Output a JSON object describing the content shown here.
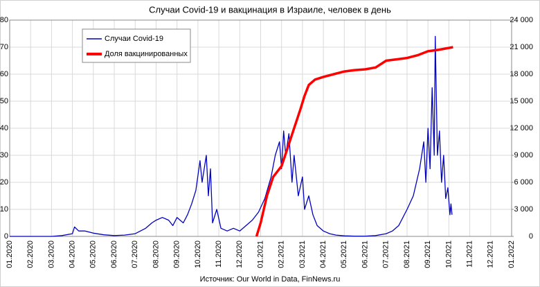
{
  "chart_data": {
    "type": "line",
    "title": "Случаи Covid-19 и вакцинация в Израиле, человек в день",
    "source": "Источник: Our World in Data, FinNews.ru",
    "xlim": [
      0,
      24
    ],
    "xticks": [
      {
        "value": 0,
        "label": "01.2020"
      },
      {
        "value": 1,
        "label": "02.2020"
      },
      {
        "value": 2,
        "label": "03.2020"
      },
      {
        "value": 3,
        "label": "04.2020"
      },
      {
        "value": 4,
        "label": "05.2020"
      },
      {
        "value": 5,
        "label": "06.2020"
      },
      {
        "value": 6,
        "label": "07.2020"
      },
      {
        "value": 7,
        "label": "08.2020"
      },
      {
        "value": 8,
        "label": "09.2020"
      },
      {
        "value": 9,
        "label": "10.2020"
      },
      {
        "value": 10,
        "label": "11.2020"
      },
      {
        "value": 11,
        "label": "12.2020"
      },
      {
        "value": 12,
        "label": "01.2021"
      },
      {
        "value": 13,
        "label": "02.2021"
      },
      {
        "value": 14,
        "label": "03.2021"
      },
      {
        "value": 15,
        "label": "04.2021"
      },
      {
        "value": 16,
        "label": "05.2021"
      },
      {
        "value": 17,
        "label": "06.2021"
      },
      {
        "value": 18,
        "label": "07.2021"
      },
      {
        "value": 19,
        "label": "08.2021"
      },
      {
        "value": 20,
        "label": "09.2021"
      },
      {
        "value": 21,
        "label": "10.2021"
      },
      {
        "value": 22,
        "label": "11.2021"
      },
      {
        "value": 23,
        "label": "12.2021"
      },
      {
        "value": 24,
        "label": "01.2022"
      }
    ],
    "ylim": [
      0,
      80
    ],
    "yticks": [
      0,
      10,
      20,
      30,
      40,
      50,
      60,
      70,
      80
    ],
    "y2lim": [
      0,
      24000
    ],
    "y2ticks": [
      0,
      {
        "value": 3000,
        "label": "3 000"
      },
      {
        "value": 6000,
        "label": "6 000"
      },
      {
        "value": 9000,
        "label": "9 000"
      },
      {
        "value": 12000,
        "label": "12 000"
      },
      {
        "value": 15000,
        "label": "15 000"
      },
      {
        "value": 18000,
        "label": "18 000"
      },
      {
        "value": 21000,
        "label": "21 000"
      },
      {
        "value": 24000,
        "label": "24 000"
      }
    ],
    "grid": true,
    "legend": "top-left",
    "series": [
      {
        "name": "Случаи Covid-19",
        "color": "#0000c0",
        "axis": "y2",
        "x": [
          0,
          2,
          2.5,
          3.0,
          3.1,
          3.3,
          3.6,
          4,
          4.5,
          5,
          5.5,
          6,
          6.5,
          6.8,
          7,
          7.3,
          7.6,
          7.8,
          8,
          8.3,
          8.5,
          8.7,
          8.9,
          9.1,
          9.2,
          9.4,
          9.5,
          9.6,
          9.7,
          9.9,
          10.1,
          10.4,
          10.7,
          11,
          11.3,
          11.6,
          11.9,
          12.2,
          12.5,
          12.7,
          12.9,
          13.0,
          13.1,
          13.2,
          13.35,
          13.5,
          13.6,
          13.8,
          14.0,
          14.1,
          14.3,
          14.5,
          14.7,
          15,
          15.3,
          15.6,
          16,
          16.5,
          17,
          17.5,
          18,
          18.3,
          18.6,
          19,
          19.3,
          19.6,
          19.8,
          19.9,
          20.0,
          20.1,
          20.2,
          20.3,
          20.35,
          20.45,
          20.55,
          20.65,
          20.75,
          20.85,
          20.95,
          21.05,
          21.1,
          21.15
        ],
        "values": [
          0,
          0,
          90,
          300,
          1050,
          600,
          600,
          360,
          180,
          90,
          150,
          300,
          900,
          1500,
          1800,
          2100,
          1800,
          1200,
          2100,
          1500,
          2400,
          3600,
          5100,
          8400,
          6000,
          9000,
          4500,
          7500,
          1500,
          3000,
          900,
          600,
          900,
          600,
          1200,
          1800,
          2700,
          4200,
          6600,
          9000,
          10500,
          7500,
          11700,
          9000,
          11400,
          6000,
          9000,
          4500,
          6600,
          3000,
          4500,
          2400,
          1200,
          600,
          300,
          150,
          60,
          30,
          30,
          90,
          300,
          600,
          1200,
          3000,
          4500,
          7500,
          10500,
          6000,
          12000,
          7500,
          16500,
          9000,
          22200,
          9000,
          11700,
          6000,
          9000,
          4200,
          5400,
          2400,
          3600,
          2400
        ]
      },
      {
        "name": "Доля вакцинированных",
        "color": "#ff0000",
        "x": [
          11.8,
          12.0,
          12.3,
          12.6,
          13.0,
          13.3,
          13.6,
          13.9,
          14.1,
          14.3,
          14.6,
          15.0,
          15.5,
          16,
          16.5,
          17,
          17.5,
          18,
          18.5,
          19,
          19.5,
          20,
          20.5,
          21.2
        ],
        "values": [
          0,
          5,
          15,
          22,
          26,
          33,
          40,
          47,
          52,
          56,
          58,
          59,
          60,
          61,
          61.5,
          61.8,
          62.5,
          65,
          65.5,
          66,
          67,
          68.5,
          69,
          70
        ]
      }
    ]
  }
}
